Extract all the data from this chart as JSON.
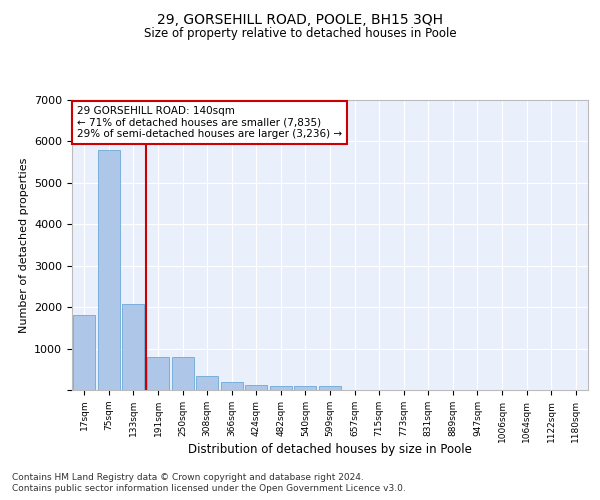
{
  "title": "29, GORSEHILL ROAD, POOLE, BH15 3QH",
  "subtitle": "Size of property relative to detached houses in Poole",
  "xlabel": "Distribution of detached houses by size in Poole",
  "ylabel": "Number of detached properties",
  "bar_color": "#aec6e8",
  "bar_edge_color": "#5a9fd4",
  "background_color": "#eaf0fb",
  "grid_color": "#ffffff",
  "annotation_box_color": "#cc0000",
  "annotation_line1": "29 GORSEHILL ROAD: 140sqm",
  "annotation_line2": "← 71% of detached houses are smaller (7,835)",
  "annotation_line3": "29% of semi-detached houses are larger (3,236) →",
  "categories": [
    "17sqm",
    "75sqm",
    "133sqm",
    "191sqm",
    "250sqm",
    "308sqm",
    "366sqm",
    "424sqm",
    "482sqm",
    "540sqm",
    "599sqm",
    "657sqm",
    "715sqm",
    "773sqm",
    "831sqm",
    "889sqm",
    "947sqm",
    "1006sqm",
    "1064sqm",
    "1122sqm",
    "1180sqm"
  ],
  "values": [
    1800,
    5800,
    2080,
    800,
    790,
    340,
    190,
    130,
    100,
    90,
    100,
    0,
    0,
    0,
    0,
    0,
    0,
    0,
    0,
    0,
    0
  ],
  "ylim": [
    0,
    7000
  ],
  "yticks": [
    0,
    1000,
    2000,
    3000,
    4000,
    5000,
    6000,
    7000
  ],
  "vline_color": "#cc0000",
  "footnote1": "Contains HM Land Registry data © Crown copyright and database right 2024.",
  "footnote2": "Contains public sector information licensed under the Open Government Licence v3.0."
}
